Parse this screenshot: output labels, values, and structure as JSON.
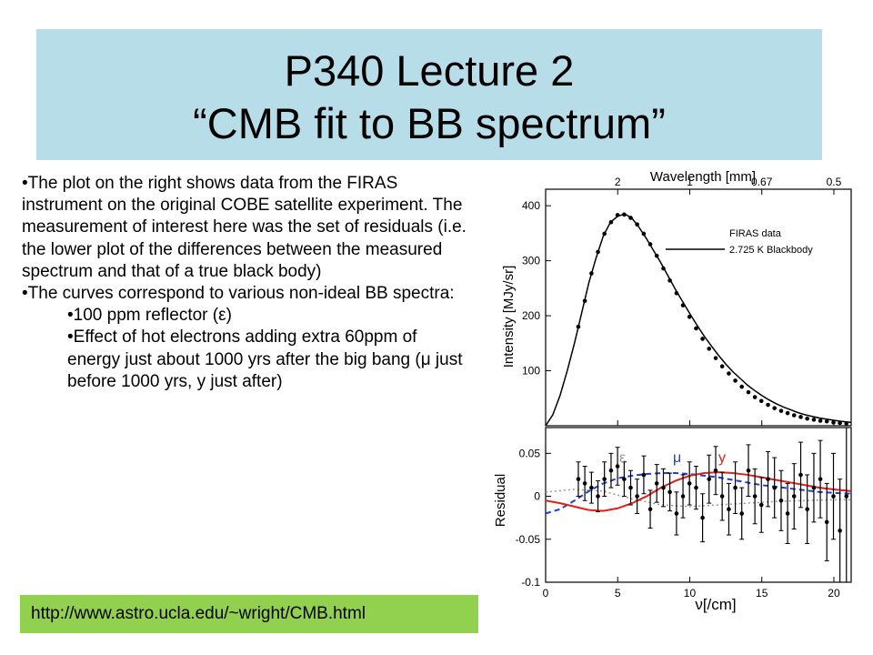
{
  "title": {
    "line1": "P340 Lecture 2",
    "line2": "“CMB fit to BB spectrum”"
  },
  "body": {
    "p1": "•The plot on the right shows data from the FIRAS instrument on the original COBE satellite experiment. The measurement of interest here was the set of residuals (i.e. the lower plot of the differences between the measured spectrum and that of a true black body)",
    "p2": "•The curves correspond to various non-ideal BB spectra:",
    "p3": "•100 ppm reflector (ε)",
    "p4": "•Effect of hot electrons adding extra 60ppm of energy just about 1000 yrs after the big bang (μ just before 1000 yrs, y just after)"
  },
  "url": "http://www.astro.ucla.edu/~wright/CMB.html",
  "colors": {
    "title_bg": "#b7dde8",
    "url_bg": "#92d050",
    "epsilon": "#999999",
    "mu": "#1f3fd0",
    "y": "#e0201a"
  },
  "chart_data": [
    {
      "type": "line",
      "top_axis_label": "Wavelength [mm]",
      "top_ticks": [
        "2",
        "1",
        "0.67",
        "0.5"
      ],
      "ylabel": "Intensity [MJy/sr]",
      "yticks": [
        "100",
        "200",
        "300",
        "400"
      ],
      "xlim": [
        0,
        21.2
      ],
      "ylim": [
        0,
        430
      ],
      "legend": [
        "FIRAS data",
        "2.725 K Blackbody"
      ],
      "legend_position": "top-right",
      "series": [
        {
          "name": "FIRAS data",
          "x": [
            2.27,
            2.72,
            3.18,
            3.63,
            4.08,
            4.54,
            4.99,
            5.45,
            5.9,
            6.35,
            6.81,
            7.26,
            7.71,
            8.17,
            8.62,
            9.08,
            9.53,
            9.98,
            10.44,
            10.89,
            11.34,
            11.8,
            12.25,
            12.71,
            13.16,
            13.61,
            14.07,
            14.52,
            14.97,
            15.43,
            15.88,
            16.34,
            16.79,
            17.24,
            17.7,
            18.15,
            18.61,
            19.06,
            19.51,
            19.97,
            20.42,
            20.87
          ],
          "y": [
            180,
            227,
            277,
            316,
            349,
            370,
            383,
            384,
            378,
            366,
            349,
            330,
            309,
            286,
            264,
            241,
            219,
            198,
            177,
            158,
            140,
            123,
            108,
            95,
            82,
            71,
            61,
            52,
            45,
            38,
            32,
            27,
            23,
            19,
            16,
            13,
            11,
            9,
            8,
            6,
            5,
            4
          ]
        },
        {
          "name": "2.725 K Blackbody",
          "x": [
            0,
            0.5,
            1,
            1.5,
            2,
            2.5,
            3,
            3.5,
            4,
            4.5,
            5,
            5.5,
            6,
            6.5,
            7,
            7.5,
            8,
            8.5,
            9,
            9.5,
            10,
            10.5,
            11,
            11.5,
            12,
            12.5,
            13,
            13.5,
            14,
            14.5,
            15,
            15.5,
            16,
            16.5,
            17,
            17.5,
            18,
            18.5,
            19,
            19.5,
            20,
            20.5,
            21.2
          ],
          "y": [
            0,
            20,
            55,
            100,
            150,
            205,
            260,
            305,
            345,
            370,
            381,
            385,
            377,
            360,
            340,
            318,
            296,
            272,
            248,
            226,
            204,
            183,
            163,
            145,
            128,
            112,
            98,
            86,
            74,
            64,
            55,
            47,
            40,
            34,
            29,
            24,
            20,
            17,
            14,
            12,
            10,
            8,
            6
          ]
        }
      ]
    },
    {
      "type": "scatter",
      "xlabel": "ν[/cm]",
      "ylabel": "Residual",
      "xticks": [
        "0",
        "5",
        "10",
        "15",
        "20"
      ],
      "yticks": [
        "0.05",
        "0",
        "-0.05",
        "-0.1"
      ],
      "xlim": [
        0,
        21.2
      ],
      "ylim": [
        -0.1,
        0.08
      ],
      "legend": [
        "ε",
        "μ",
        "y"
      ],
      "series": [
        {
          "name": "data",
          "x": [
            2.27,
            2.72,
            3.18,
            3.63,
            4.08,
            4.54,
            4.99,
            5.45,
            5.9,
            6.35,
            6.81,
            7.26,
            7.71,
            8.17,
            8.62,
            9.08,
            9.53,
            9.98,
            10.44,
            10.89,
            11.34,
            11.8,
            12.25,
            12.71,
            13.16,
            13.61,
            14.07,
            14.52,
            14.97,
            15.43,
            15.88,
            16.34,
            16.79,
            17.24,
            17.7,
            18.15,
            18.61,
            19.06,
            19.51,
            19.97,
            20.42,
            20.87
          ],
          "y": [
            0.02,
            0.015,
            0.01,
            0.0,
            0.02,
            0.03,
            0.035,
            0.02,
            0.01,
            0.0,
            0.025,
            -0.015,
            0.015,
            0.01,
            0.005,
            -0.02,
            0.0,
            0.015,
            0.01,
            -0.025,
            0.02,
            0.03,
            0.0,
            -0.015,
            0.01,
            -0.02,
            0.03,
            0.0,
            -0.01,
            0.02,
            0.01,
            -0.005,
            -0.02,
            0.0,
            0.025,
            -0.015,
            0.01,
            0.02,
            -0.03,
            0.0,
            -0.04,
            0.0
          ],
          "err": [
            0.02,
            0.02,
            0.018,
            0.018,
            0.02,
            0.02,
            0.022,
            0.02,
            0.02,
            0.02,
            0.022,
            0.022,
            0.022,
            0.022,
            0.022,
            0.025,
            0.025,
            0.025,
            0.025,
            0.028,
            0.028,
            0.028,
            0.028,
            0.03,
            0.03,
            0.03,
            0.03,
            0.032,
            0.032,
            0.032,
            0.035,
            0.035,
            0.035,
            0.038,
            0.038,
            0.04,
            0.04,
            0.045,
            0.045,
            0.05,
            0.06,
            0.1
          ]
        },
        {
          "name": "ε",
          "x": [
            0,
            2,
            4,
            6,
            8,
            10,
            12,
            14,
            16,
            18,
            20,
            21.2
          ],
          "y": [
            0.005,
            0.008,
            0.006,
            -0.003,
            -0.01,
            -0.012,
            -0.01,
            -0.008,
            -0.006,
            -0.005,
            -0.004,
            -0.004
          ]
        },
        {
          "name": "μ",
          "x": [
            0,
            1,
            2,
            3,
            4,
            5,
            6,
            7,
            8,
            9,
            10,
            11,
            12,
            13,
            14,
            15,
            16,
            17,
            18,
            19,
            20,
            21.2
          ],
          "y": [
            -0.02,
            -0.015,
            -0.005,
            0.006,
            0.015,
            0.021,
            0.024,
            0.026,
            0.027,
            0.027,
            0.026,
            0.024,
            0.022,
            0.019,
            0.016,
            0.013,
            0.011,
            0.009,
            0.007,
            0.005,
            0.004,
            0.003
          ]
        },
        {
          "name": "y",
          "x": [
            0,
            1,
            2,
            3,
            4,
            5,
            6,
            7,
            8,
            9,
            10,
            11,
            12,
            13,
            14,
            15,
            16,
            17,
            18,
            19,
            20,
            21.2
          ],
          "y": [
            -0.005,
            -0.008,
            -0.012,
            -0.016,
            -0.017,
            -0.014,
            -0.008,
            0.0,
            0.01,
            0.018,
            0.024,
            0.027,
            0.028,
            0.027,
            0.025,
            0.022,
            0.019,
            0.016,
            0.013,
            0.01,
            0.008,
            0.006
          ]
        }
      ]
    }
  ]
}
